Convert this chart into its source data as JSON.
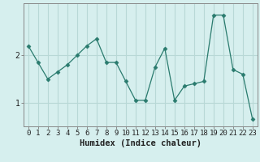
{
  "title": "",
  "xlabel": "Humidex (Indice chaleur)",
  "ylabel": "",
  "x": [
    0,
    1,
    2,
    3,
    4,
    5,
    6,
    7,
    8,
    9,
    10,
    11,
    12,
    13,
    14,
    15,
    16,
    17,
    18,
    19,
    20,
    21,
    22,
    23
  ],
  "y": [
    2.2,
    1.85,
    1.5,
    1.65,
    1.8,
    2.0,
    2.2,
    2.35,
    1.85,
    1.85,
    1.45,
    1.05,
    1.05,
    1.75,
    2.15,
    1.05,
    1.35,
    1.4,
    1.45,
    2.85,
    2.85,
    1.7,
    1.6,
    0.65
  ],
  "line_color": "#2a7b6e",
  "marker": "D",
  "marker_size": 2.5,
  "bg_color": "#d6efee",
  "grid_color": "#b8d8d6",
  "spine_color": "#888888",
  "tick_label_color": "#222222",
  "ylim": [
    0.5,
    3.1
  ],
  "yticks": [
    1,
    2
  ],
  "xlim": [
    -0.5,
    23.5
  ],
  "font_size": 7.0,
  "xlabel_fontsize": 7.5
}
